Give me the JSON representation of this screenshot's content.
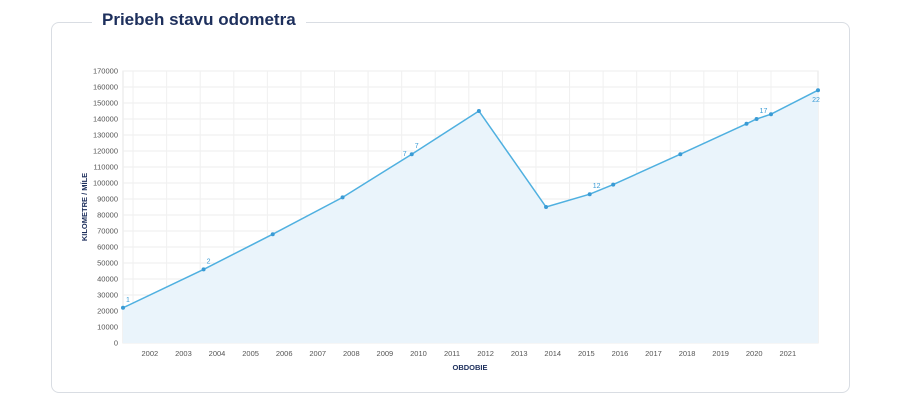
{
  "title": "Priebeh stavu odometra",
  "chart_data": {
    "type": "area",
    "title": "Priebeh stavu odometra",
    "xlabel": "OBDOBIE",
    "ylabel": "KILOMETRE / MÍLE",
    "ylim": [
      0,
      170000
    ],
    "xlim": [
      2001.2,
      2021.9
    ],
    "yticks": [
      "0",
      "10000",
      "20000",
      "30000",
      "40000",
      "50000",
      "60000",
      "70000",
      "80000",
      "90000",
      "100000",
      "110000",
      "120000",
      "130000",
      "140000",
      "150000",
      "160000",
      "170000"
    ],
    "xticks": [
      "2002",
      "2003",
      "2004",
      "2005",
      "2006",
      "2007",
      "2008",
      "2009",
      "2010",
      "2011",
      "2012",
      "2013",
      "2014",
      "2015",
      "2016",
      "2017",
      "2018",
      "2019",
      "2020",
      "2021"
    ],
    "color": "#4fb0e0",
    "fill": "#eaf4fb",
    "points": [
      {
        "x": 2001.2,
        "y": 22000,
        "label": "1"
      },
      {
        "x": 2003.6,
        "y": 46000,
        "label": "2"
      },
      {
        "x": 2005.66,
        "y": 68000,
        "label": ""
      },
      {
        "x": 2007.74,
        "y": 91000,
        "label": ""
      },
      {
        "x": 2009.8,
        "y": 118000,
        "label": "7"
      },
      {
        "x": 2011.8,
        "y": 145000,
        "label": ""
      },
      {
        "x": 2013.8,
        "y": 85000,
        "label": ""
      },
      {
        "x": 2015.1,
        "y": 93000,
        "label": "12"
      },
      {
        "x": 2015.8,
        "y": 99000,
        "label": ""
      },
      {
        "x": 2017.8,
        "y": 118000,
        "label": ""
      },
      {
        "x": 2019.77,
        "y": 137000,
        "label": ""
      },
      {
        "x": 2020.07,
        "y": 140000,
        "label": "17"
      },
      {
        "x": 2020.5,
        "y": 143000,
        "label": ""
      },
      {
        "x": 2021.9,
        "y": 158000,
        "label": "22"
      }
    ],
    "extra_label": "7"
  }
}
